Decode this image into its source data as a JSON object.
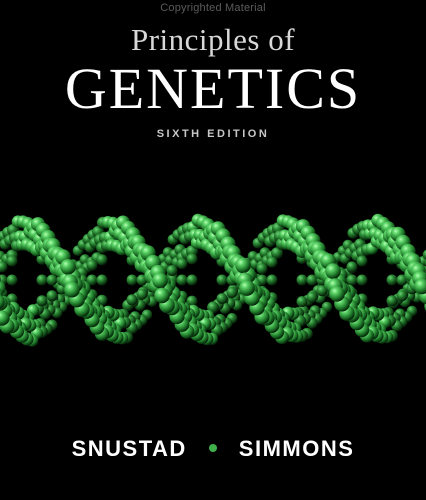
{
  "watermark": "Copyrighted Material",
  "cover": {
    "subtitle": "Principles of",
    "title": "GENETICS",
    "edition": "SIXTH EDITION",
    "author_left": "SNUSTAD",
    "author_right": "SIMMONS"
  },
  "colors": {
    "background": "#000000",
    "dna_green": "#2f9e3a",
    "dna_highlight": "#8ff08f",
    "dot_green": "#3fb04a"
  },
  "icons": {
    "dna_helix": "dna-helix-illustration"
  }
}
